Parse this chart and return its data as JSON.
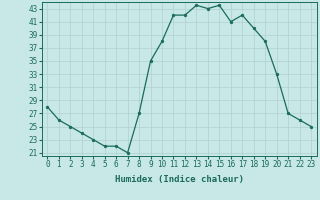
{
  "x": [
    0,
    1,
    2,
    3,
    4,
    5,
    6,
    7,
    8,
    9,
    10,
    11,
    12,
    13,
    14,
    15,
    16,
    17,
    18,
    19,
    20,
    21,
    22,
    23
  ],
  "y": [
    28,
    26,
    25,
    24,
    23,
    22,
    22,
    21,
    27,
    35,
    38,
    42,
    42,
    43.5,
    43,
    43.5,
    41,
    42,
    40,
    38,
    33,
    27,
    26,
    25
  ],
  "line_color": "#1a6b5a",
  "marker_color": "#1a6b5a",
  "bg_color": "#c8e8e8",
  "grid_color": "#b0d0d0",
  "xlabel": "Humidex (Indice chaleur)",
  "xlim": [
    -0.5,
    23.5
  ],
  "ylim": [
    20.5,
    44
  ],
  "yticks": [
    21,
    23,
    25,
    27,
    29,
    31,
    33,
    35,
    37,
    39,
    41,
    43
  ],
  "xticks": [
    0,
    1,
    2,
    3,
    4,
    5,
    6,
    7,
    8,
    9,
    10,
    11,
    12,
    13,
    14,
    15,
    16,
    17,
    18,
    19,
    20,
    21,
    22,
    23
  ],
  "tick_fontsize": 5.5,
  "label_fontsize": 6.5
}
